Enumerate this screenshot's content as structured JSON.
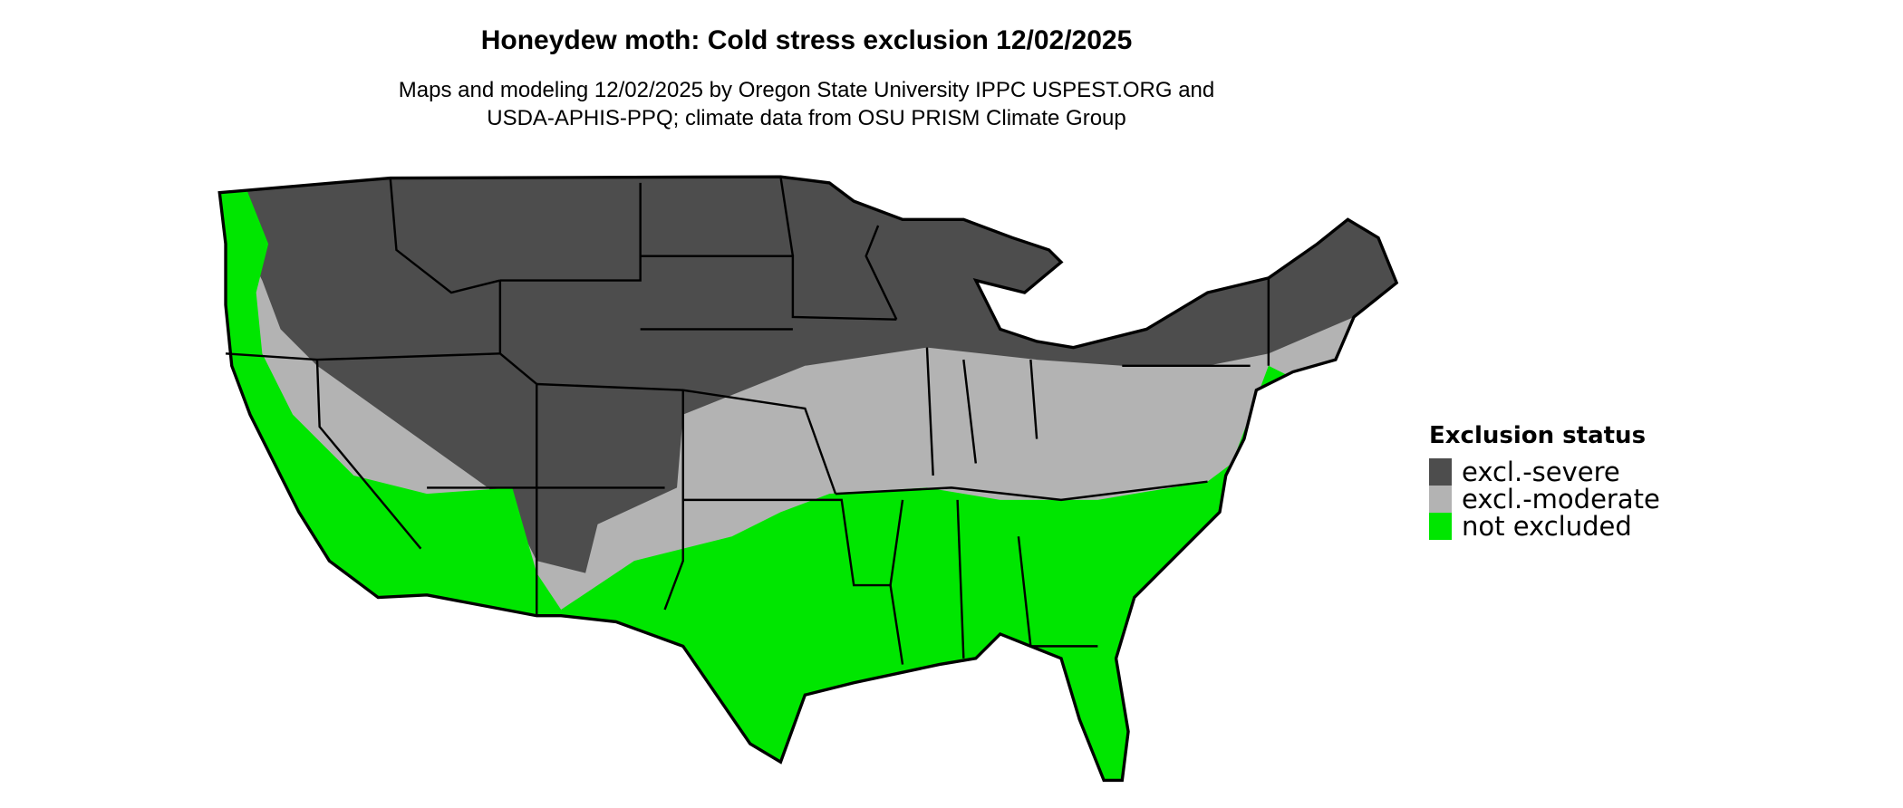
{
  "title": "Honeydew moth: Cold stress exclusion 12/02/2025",
  "subtitle": {
    "line1": "Maps and modeling 12/02/2025 by Oregon State University IPPC USPEST.ORG and",
    "line2": "USDA-APHIS-PPQ; climate data from OSU PRISM Climate Group"
  },
  "legend": {
    "title": "Exclusion status",
    "items": [
      {
        "label": "excl.-severe",
        "color": "#4d4d4d"
      },
      {
        "label": "excl.-moderate",
        "color": "#b3b3b3"
      },
      {
        "label": "not excluded",
        "color": "#00e600"
      }
    ]
  },
  "map": {
    "region": "Contiguous United States",
    "borders": "state boundaries"
  }
}
